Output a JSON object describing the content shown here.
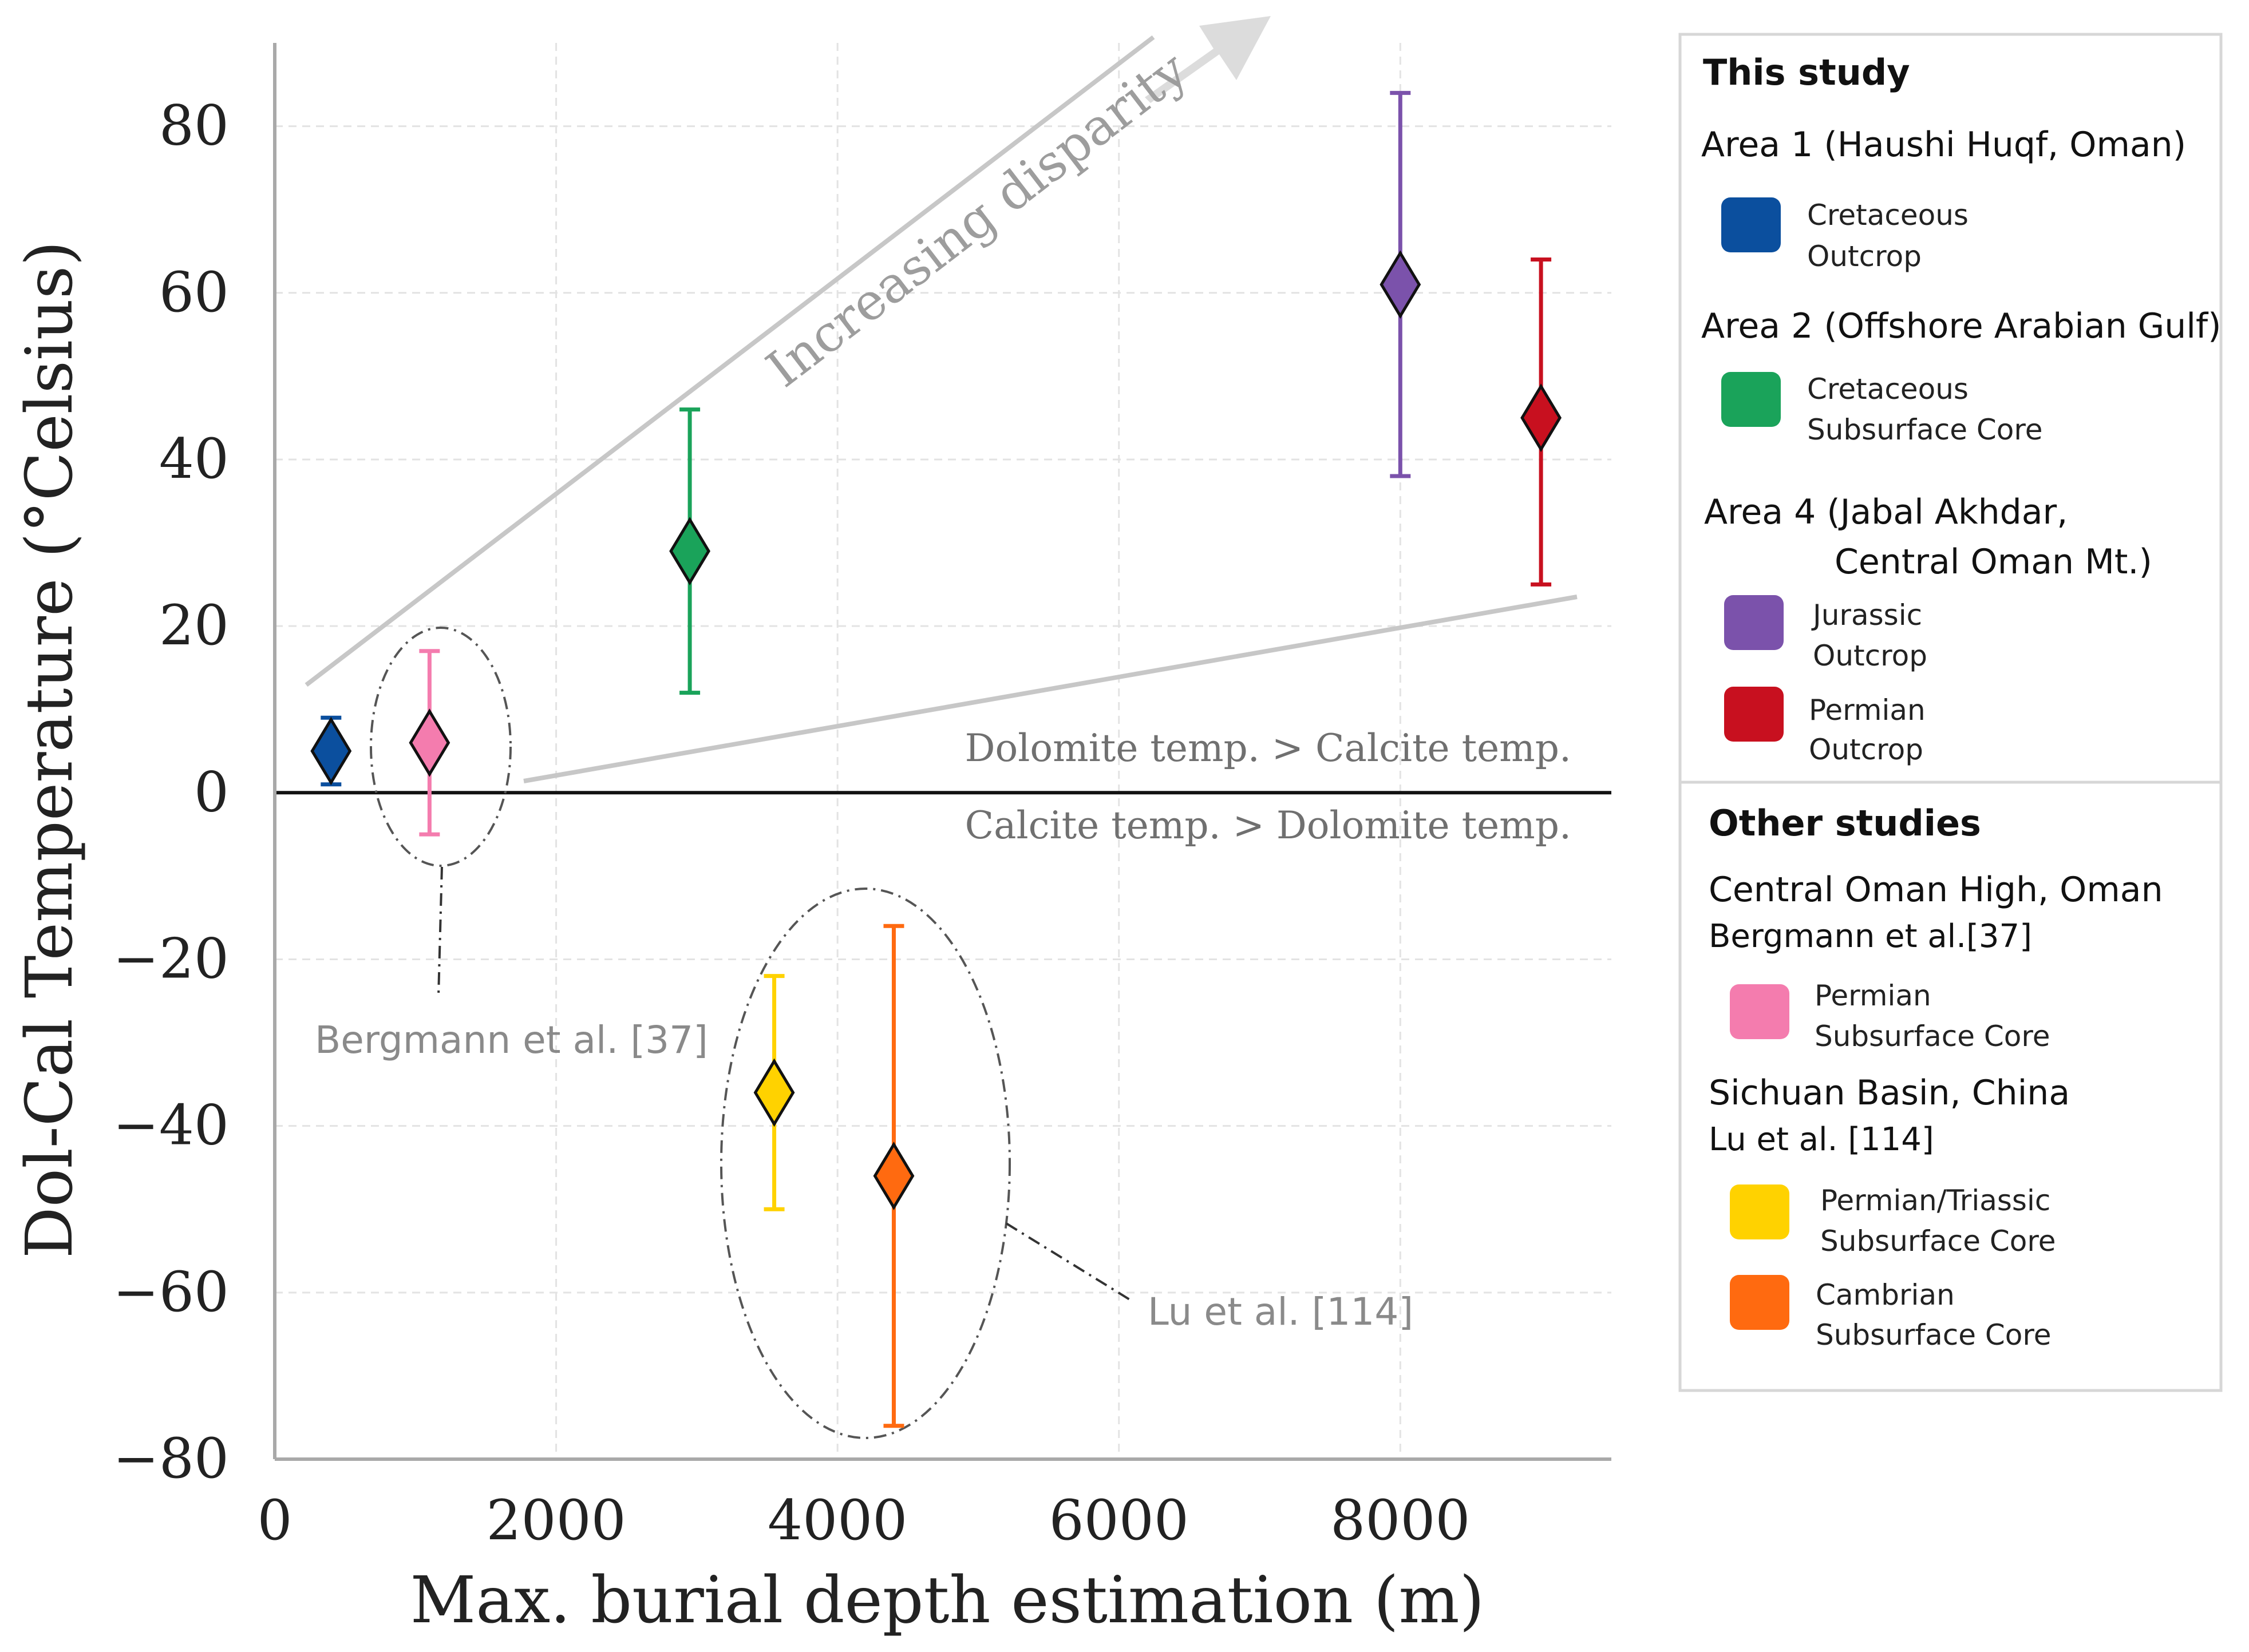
{
  "chart_data": {
    "type": "scatter",
    "xlabel": "Max. burial depth estimation (m)",
    "ylabel": "Dol-Cal Temperature (°Celsius)",
    "xlim": [
      0,
      9500
    ],
    "ylim": [
      -80,
      90
    ],
    "xticks": [
      {
        "value": 0,
        "label": "0"
      },
      {
        "value": 2000,
        "label": "2000"
      },
      {
        "value": 4000,
        "label": "4000"
      },
      {
        "value": 6000,
        "label": "6000"
      },
      {
        "value": 8000,
        "label": "8000"
      }
    ],
    "yticks": [
      {
        "value": -80,
        "label": "−80"
      },
      {
        "value": -60,
        "label": "−60"
      },
      {
        "value": -40,
        "label": "−40"
      },
      {
        "value": -20,
        "label": "−20"
      },
      {
        "value": 0,
        "label": "0"
      },
      {
        "value": 20,
        "label": "20"
      },
      {
        "value": 40,
        "label": "40"
      },
      {
        "value": 60,
        "label": "60"
      },
      {
        "value": 80,
        "label": "80"
      }
    ],
    "grid": true,
    "legend_position": "right",
    "series": [
      {
        "name": "Cretaceous Outcrop",
        "color": "#0b4f9e",
        "x": 400,
        "y": 5,
        "ylow": 1,
        "yhigh": 9
      },
      {
        "name": "Permian Subsurface Core",
        "color": "#f47cae",
        "x": 1100,
        "y": 6,
        "ylow": -5,
        "yhigh": 17
      },
      {
        "name": "Cretaceous Subsurface Core",
        "color": "#1aa35a",
        "x": 2950,
        "y": 29,
        "ylow": 12,
        "yhigh": 46
      },
      {
        "name": "Permian/Triassic Subsurface Core",
        "color": "#ffd200",
        "x": 3550,
        "y": -36,
        "ylow": -50,
        "yhigh": -22
      },
      {
        "name": "Cambrian Subsurface Core",
        "color": "#ff6a10",
        "x": 4400,
        "y": -46,
        "ylow": -76,
        "yhigh": -16
      },
      {
        "name": "Jurassic Outcrop",
        "color": "#7b52ab",
        "x": 8000,
        "y": 61,
        "ylow": 38,
        "yhigh": 84
      },
      {
        "name": "Permian Outcrop",
        "color": "#c8101f",
        "x": 9000,
        "y": 45,
        "ylow": 25,
        "yhigh": 64
      }
    ],
    "annotations": {
      "increasing_disparity": "Increasing disparity",
      "dol_gt_cal": "Dolomite temp. > Calcite temp.",
      "cal_gt_dol": "Calcite temp. > Dolomite temp.",
      "bergmann": "Bergmann et al. [37]",
      "lu": "Lu et al. [114]"
    }
  },
  "legend": {
    "this_study_heading": "This study",
    "area1_title": "Area 1 (Haushi Huqf, Oman)",
    "area1_item": {
      "line1": "Cretaceous",
      "line2": "Outcrop",
      "color": "#0b4f9e"
    },
    "area2_title": "Area 2 (Offshore Arabian Gulf)",
    "area2_item": {
      "line1": "Cretaceous",
      "line2": "Subsurface Core",
      "color": "#1aa35a"
    },
    "area4_title_line1": "Area 4 (Jabal Akhdar,",
    "area4_title_line2": "Central Oman Mt.)",
    "area4_item1": {
      "line1": "Jurassic",
      "line2": "Outcrop",
      "color": "#7b52ab"
    },
    "area4_item2": {
      "line1": "Permian",
      "line2": "Outcrop",
      "color": "#c8101f"
    },
    "other_studies_heading": "Other studies",
    "central_oman_title": "Central Oman High, Oman",
    "central_oman_ref": "Bergmann et al.[37]",
    "central_oman_item": {
      "line1": "Permian",
      "line2": "Subsurface Core",
      "color": "#f47cae"
    },
    "sichuan_title": "Sichuan Basin, China",
    "sichuan_ref": "Lu et al. [114]",
    "sichuan_item1": {
      "line1": "Permian/Triassic",
      "line2": "Subsurface Core",
      "color": "#ffd200"
    },
    "sichuan_item2": {
      "line1": "Cambrian",
      "line2": "Subsurface Core",
      "color": "#ff6a10"
    }
  }
}
